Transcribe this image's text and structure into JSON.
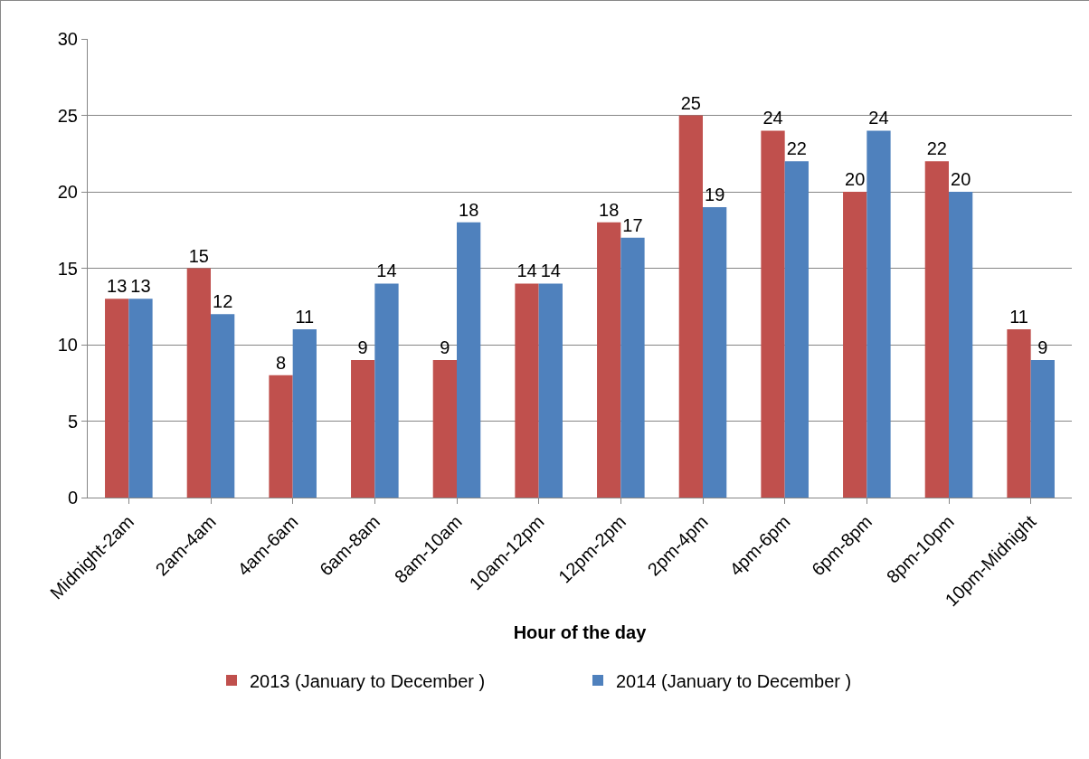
{
  "chart_data": {
    "type": "bar",
    "xlabel": "Hour of the day",
    "categories": [
      "Midnight-2am",
      "2am-4am",
      "4am-6am",
      "6am-8am",
      "8am-10am",
      "10am-12pm",
      "12pm-2pm",
      "2pm-4pm",
      "4pm-6pm",
      "6pm-8pm",
      "8pm-10pm",
      "10pm-Midnight"
    ],
    "series": [
      {
        "name": "2013 (January to December )",
        "color": "#c0504d",
        "values": [
          13,
          15,
          8,
          9,
          9,
          14,
          18,
          25,
          24,
          20,
          22,
          11
        ]
      },
      {
        "name": "2014 (January to December )",
        "color": "#4f81bd",
        "values": [
          13,
          12,
          11,
          14,
          18,
          14,
          17,
          19,
          22,
          24,
          20,
          9
        ]
      }
    ],
    "ylim": [
      0,
      30
    ],
    "yticks": [
      0,
      5,
      10,
      15,
      20,
      25,
      30
    ],
    "grid": "y",
    "legend": "bottom",
    "data_labels": true
  }
}
